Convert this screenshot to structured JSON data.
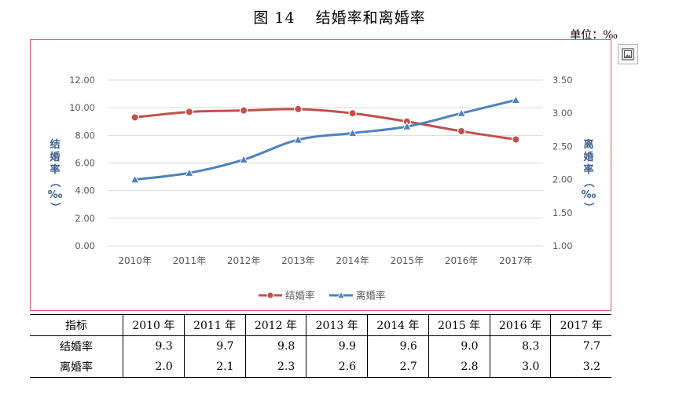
{
  "header": {
    "figure_number": "图 14",
    "title": "结婚率和离婚率",
    "unit": "单位：‰"
  },
  "chart_data": {
    "type": "line",
    "categories": [
      "2010年",
      "2011年",
      "2012年",
      "2013年",
      "2014年",
      "2015年",
      "2016年",
      "2017年"
    ],
    "series": [
      {
        "name": "结婚率",
        "axis": "left",
        "color": "#c0504d",
        "marker": "circle",
        "values": [
          9.3,
          9.7,
          9.8,
          9.9,
          9.6,
          9.0,
          8.3,
          7.7
        ]
      },
      {
        "name": "离婚率",
        "axis": "right",
        "color": "#4f81bd",
        "marker": "triangle",
        "values": [
          2.0,
          2.1,
          2.3,
          2.6,
          2.7,
          2.8,
          3.0,
          3.2
        ]
      }
    ],
    "y_left": {
      "label": "结婚率（‰）",
      "lim": [
        0,
        12
      ],
      "ticks": [
        "0.00",
        "2.00",
        "4.00",
        "6.00",
        "8.00",
        "10.00",
        "12.00"
      ]
    },
    "y_right": {
      "label": "离婚率（‰）",
      "lim": [
        1.0,
        3.5
      ],
      "ticks": [
        "1.00",
        "1.50",
        "2.00",
        "2.50",
        "3.00",
        "3.50"
      ]
    },
    "grid": true,
    "legend": "bottom"
  },
  "table": {
    "header": [
      "指标",
      "2010 年",
      "2011 年",
      "2012 年",
      "2013 年",
      "2014 年",
      "2015 年",
      "2016 年",
      "2017 年"
    ],
    "rows": [
      {
        "label": "结婚率",
        "values": [
          "9.3",
          "9.7",
          "9.8",
          "9.9",
          "9.6",
          "9.0",
          "8.3",
          "7.7"
        ]
      },
      {
        "label": "离婚率",
        "values": [
          "2.0",
          "2.1",
          "2.3",
          "2.6",
          "2.7",
          "2.8",
          "3.0",
          "3.2"
        ]
      }
    ]
  },
  "side_icon": "picture-frame-icon"
}
